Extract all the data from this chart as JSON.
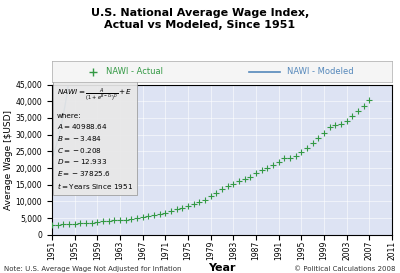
{
  "title": "U.S. National Average Wage Index,\nActual vs Modeled, Since 1951",
  "xlabel": "Year",
  "ylabel": "Average Wage [$USD]",
  "note_left": "Note: U.S. Average Wage Not Adjusted for Inflation",
  "note_right": "© Political Calculations 2008",
  "params": {
    "A": 40988.64,
    "B": -3.484,
    "C": -0.208,
    "D": -12.933,
    "E": -37825.6
  },
  "actual_years": [
    1951,
    1952,
    1953,
    1954,
    1955,
    1956,
    1957,
    1958,
    1959,
    1960,
    1961,
    1962,
    1963,
    1964,
    1965,
    1966,
    1967,
    1968,
    1969,
    1970,
    1971,
    1972,
    1973,
    1974,
    1975,
    1976,
    1977,
    1978,
    1979,
    1980,
    1981,
    1982,
    1983,
    1984,
    1985,
    1986,
    1987,
    1988,
    1989,
    1990,
    1991,
    1992,
    1993,
    1994,
    1995,
    1996,
    1997,
    1998,
    1999,
    2000,
    2001,
    2002,
    2003,
    2004,
    2005,
    2006,
    2007
  ],
  "actual_values": [
    2799.16,
    2973.32,
    3139.44,
    3155.64,
    3301.44,
    3532.36,
    3641.72,
    3673.8,
    3855.8,
    4007.12,
    4086.76,
    4291.4,
    4396.64,
    4576.32,
    4658.72,
    4938.36,
    5213.44,
    5571.76,
    5893.76,
    6186.24,
    6497.08,
    7133.8,
    7580.16,
    8030.76,
    8630.92,
    9226.48,
    9779.44,
    10556.03,
    11479.46,
    12513.46,
    13773.1,
    14531.34,
    15239.24,
    16135.07,
    16822.51,
    17321.82,
    18426.51,
    19334.04,
    20099.55,
    21027.98,
    21811.6,
    22935.42,
    23132.67,
    23753.53,
    24705.66,
    25913.9,
    27426.0,
    28861.44,
    30469.84,
    32154.82,
    32921.92,
    33252.09,
    34064.95,
    35648.55,
    36952.94,
    38651.41,
    40405.48
  ],
  "ylim": [
    0,
    45000
  ],
  "yticks": [
    0,
    5000,
    10000,
    15000,
    20000,
    25000,
    30000,
    35000,
    40000,
    45000
  ],
  "xtick_years": [
    1951,
    1955,
    1959,
    1963,
    1967,
    1971,
    1975,
    1979,
    1983,
    1987,
    1991,
    1995,
    1999,
    2003,
    2007,
    2011
  ],
  "bg_color": "#dde3f3",
  "line_color": "#5588bb",
  "marker_color": "#339944",
  "legend_bg": "#f5f5f5",
  "box_bg": "#e8e8e8",
  "box_edge": "#999999"
}
